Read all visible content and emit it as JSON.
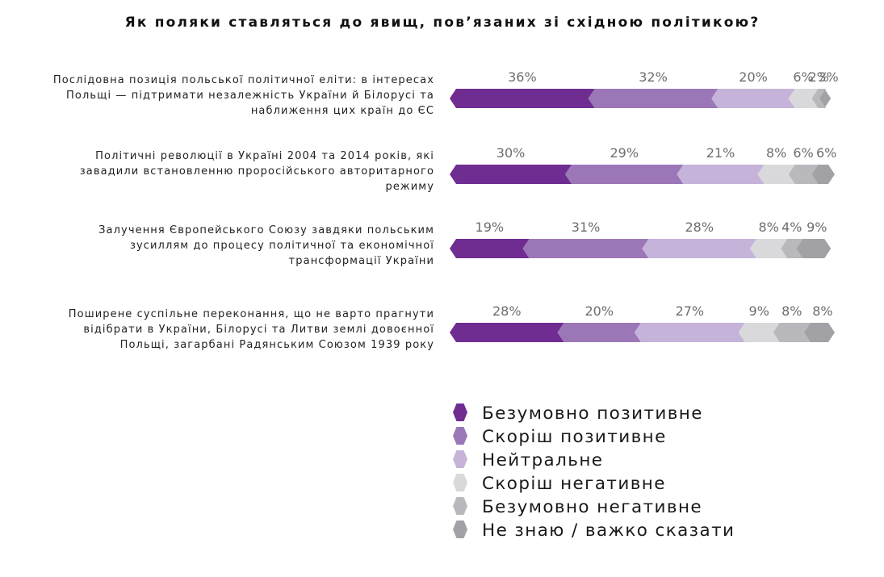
{
  "chart_data": {
    "type": "bar",
    "orientation": "horizontal",
    "stacked": true,
    "title": "Як поляки ставляться до явищ, пов’язаних зі східною політикою?",
    "categories": [
      [
        "Послідовна позиція польської політичної еліти: в інтересах",
        "Польщі — підтримати  незалежність України й Білорусі та",
        "наближення цих країн до ЄС"
      ],
      [
        "Політичні революції в Україні 2004 та 2014 років, які",
        "завадили встановленню проросійського авторитарного",
        "режиму"
      ],
      [
        "Залучення Європейського Союзу завдяки польським",
        "зусиллям до процесу політичної та економічної",
        "трансформації України"
      ],
      [
        "Поширене суспільне переконання, що не варто прагнути",
        "відібрати в України, Білорусі та Литви землі довоєнної",
        "Польщі, загарбані Радянським Союзом 1939 року"
      ]
    ],
    "series": [
      {
        "name": "Безумовно позитивне",
        "color": "#6f2c91",
        "values": [
          36,
          30,
          19,
          28
        ]
      },
      {
        "name": "Скоріш позитивне",
        "color": "#9b77b7",
        "values": [
          32,
          29,
          31,
          20
        ]
      },
      {
        "name": "Нейтральне",
        "color": "#c5b3d9",
        "values": [
          20,
          21,
          28,
          27
        ]
      },
      {
        "name": "Скоріш негативне",
        "color": "#d9d9db",
        "values": [
          6,
          8,
          8,
          9
        ]
      },
      {
        "name": "Безумовно негативне",
        "color": "#b9b9bd",
        "values": [
          2,
          6,
          4,
          8
        ]
      },
      {
        "name": "Не знаю / важко сказати",
        "color": "#a2a2a6",
        "values": [
          3,
          6,
          9,
          8
        ]
      }
    ],
    "data_labels": [
      [
        "36%",
        "32%",
        "20%",
        "6%",
        "2%",
        "3%"
      ],
      [
        "30%",
        "29%",
        "21%",
        "8%",
        "6%",
        "6%"
      ],
      [
        "19%",
        "31%",
        "28%",
        "8%",
        "4%",
        "9%"
      ],
      [
        "28%",
        "20%",
        "27%",
        "9%",
        "8%",
        "8%"
      ]
    ],
    "legend_position": "bottom-right",
    "grid": false,
    "xlim": [
      0,
      100
    ]
  }
}
